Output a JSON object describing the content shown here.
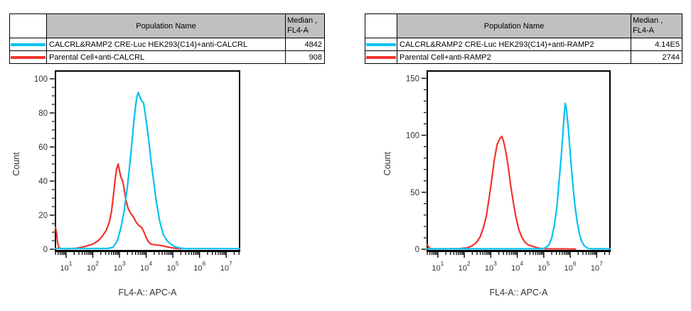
{
  "panels": [
    {
      "table": {
        "population_header": "Population Name",
        "median_header_line1": "Median ,",
        "median_header_line2": "FL4-A",
        "rows": [
          {
            "color": "#00C2F0",
            "name": "CALCRL&RAMP2 CRE-Luc HEK293(C14)+anti-CALCRL",
            "median": "4842"
          },
          {
            "color": "#F2332C",
            "name": "Parental Cell+anti-CALCRL",
            "median": "908"
          }
        ]
      }
    },
    {
      "table": {
        "population_header": "Population Name",
        "median_header_line1": "Median ,",
        "median_header_line2": "FL4-A",
        "rows": [
          {
            "color": "#00C2F0",
            "name": "CALCRL&RAMP2 CRE-Luc HEK293(C14)+anti-RAMP2",
            "median": "4.14E5"
          },
          {
            "color": "#F2332C",
            "name": "Parental Cell+anti-RAMP2",
            "median": "2744"
          }
        ]
      }
    }
  ],
  "chart_data": [
    {
      "type": "line",
      "subtype": "flow-cytometry-histogram-overlay",
      "title": "",
      "xlabel": "FL4-A:: APC-A",
      "ylabel": "Count",
      "x_scale": "log10",
      "x_log_range": [
        0.6,
        7.5
      ],
      "x_major_tick_exponents": [
        1,
        2,
        3,
        4,
        5,
        6,
        7
      ],
      "ylim": [
        0,
        100
      ],
      "y_major_ticks": [
        0,
        20,
        40,
        60,
        80,
        100
      ],
      "y_minor_step": 5,
      "grid": false,
      "legend_position": "table-above",
      "series": [
        {
          "name": "CALCRL&RAMP2 CRE-Luc HEK293(C14)+anti-CALCRL",
          "color": "#00C2F0",
          "median_fl4a": "4842",
          "peak_count": 92,
          "points_logx_count": [
            [
              0.6,
              0.4
            ],
            [
              2.55,
              0.4
            ],
            [
              2.75,
              1
            ],
            [
              2.92,
              5
            ],
            [
              3.06,
              13
            ],
            [
              3.18,
              23
            ],
            [
              3.3,
              37
            ],
            [
              3.42,
              55
            ],
            [
              3.52,
              72
            ],
            [
              3.6,
              84
            ],
            [
              3.66,
              90
            ],
            [
              3.71,
              92
            ],
            [
              3.77,
              89
            ],
            [
              3.83,
              87
            ],
            [
              3.9,
              86
            ],
            [
              3.96,
              80
            ],
            [
              4.03,
              72
            ],
            [
              4.11,
              62
            ],
            [
              4.18,
              52
            ],
            [
              4.28,
              40
            ],
            [
              4.38,
              28
            ],
            [
              4.5,
              17
            ],
            [
              4.63,
              9
            ],
            [
              4.78,
              5
            ],
            [
              4.93,
              3
            ],
            [
              5.08,
              1.5
            ],
            [
              5.23,
              0.8
            ],
            [
              5.42,
              0.4
            ],
            [
              7.5,
              0.35
            ]
          ]
        },
        {
          "name": "Parental Cell+anti-CALCRL",
          "color": "#F2332C",
          "median_fl4a": "908",
          "peak_count": 50,
          "points_logx_count": [
            [
              0.6,
              13
            ],
            [
              0.64,
              10
            ],
            [
              0.68,
              4
            ],
            [
              0.73,
              1
            ],
            [
              0.8,
              0.4
            ],
            [
              1.1,
              0.3
            ],
            [
              1.4,
              0.6
            ],
            [
              1.7,
              1.6
            ],
            [
              2.0,
              3
            ],
            [
              2.2,
              5
            ],
            [
              2.35,
              7.5
            ],
            [
              2.5,
              11
            ],
            [
              2.62,
              16
            ],
            [
              2.7,
              22
            ],
            [
              2.76,
              30
            ],
            [
              2.83,
              40
            ],
            [
              2.89,
              47
            ],
            [
              2.95,
              50
            ],
            [
              3.0,
              46
            ],
            [
              3.06,
              42
            ],
            [
              3.12,
              40
            ],
            [
              3.18,
              35
            ],
            [
              3.24,
              29
            ],
            [
              3.32,
              24
            ],
            [
              3.42,
              21
            ],
            [
              3.52,
              19
            ],
            [
              3.62,
              16
            ],
            [
              3.72,
              14
            ],
            [
              3.82,
              13
            ],
            [
              3.92,
              10
            ],
            [
              4.0,
              7
            ],
            [
              4.08,
              4.5
            ],
            [
              4.18,
              3
            ],
            [
              4.35,
              2.6
            ],
            [
              4.55,
              2.2
            ],
            [
              4.72,
              1.6
            ],
            [
              4.9,
              1
            ],
            [
              5.1,
              0.5
            ],
            [
              5.3,
              0.2
            ]
          ]
        }
      ]
    },
    {
      "type": "line",
      "subtype": "flow-cytometry-histogram-overlay",
      "title": "",
      "xlabel": "FL4-A:: APC-A",
      "ylabel": "Count",
      "x_scale": "log10",
      "x_log_range": [
        0.6,
        7.5
      ],
      "x_major_tick_exponents": [
        1,
        2,
        3,
        4,
        5,
        6,
        7
      ],
      "ylim": [
        0,
        150
      ],
      "y_major_ticks": [
        0,
        50,
        100,
        150
      ],
      "y_minor_step": 10,
      "grid": false,
      "legend_position": "table-above",
      "series": [
        {
          "name": "CALCRL&RAMP2 CRE-Luc HEK293(C14)+anti-RAMP2",
          "color": "#00C2F0",
          "median_fl4a": "4.14E5",
          "peak_count": 128,
          "points_logx_count": [
            [
              0.6,
              0.4
            ],
            [
              4.95,
              0.4
            ],
            [
              5.08,
              1.5
            ],
            [
              5.2,
              4
            ],
            [
              5.3,
              10
            ],
            [
              5.4,
              21
            ],
            [
              5.5,
              38
            ],
            [
              5.58,
              60
            ],
            [
              5.66,
              82
            ],
            [
              5.72,
              100
            ],
            [
              5.77,
              118
            ],
            [
              5.81,
              128
            ],
            [
              5.86,
              122
            ],
            [
              5.92,
              108
            ],
            [
              5.98,
              90
            ],
            [
              6.05,
              70
            ],
            [
              6.12,
              51
            ],
            [
              6.19,
              36
            ],
            [
              6.27,
              23
            ],
            [
              6.35,
              13
            ],
            [
              6.44,
              6.5
            ],
            [
              6.54,
              2.8
            ],
            [
              6.65,
              1
            ],
            [
              6.78,
              0.4
            ],
            [
              7.5,
              0.35
            ]
          ]
        },
        {
          "name": "Parental Cell+anti-RAMP2",
          "color": "#F2332C",
          "median_fl4a": "2744",
          "peak_count": 99,
          "points_logx_count": [
            [
              0.6,
              4
            ],
            [
              0.64,
              2.5
            ],
            [
              0.69,
              1
            ],
            [
              0.76,
              0.4
            ],
            [
              1.2,
              0.3
            ],
            [
              1.8,
              0.5
            ],
            [
              2.1,
              1.2
            ],
            [
              2.3,
              3
            ],
            [
              2.46,
              6
            ],
            [
              2.6,
              11
            ],
            [
              2.72,
              19
            ],
            [
              2.83,
              29
            ],
            [
              2.93,
              44
            ],
            [
              3.03,
              60
            ],
            [
              3.13,
              78
            ],
            [
              3.24,
              92
            ],
            [
              3.34,
              97
            ],
            [
              3.42,
              99
            ],
            [
              3.5,
              93
            ],
            [
              3.58,
              84
            ],
            [
              3.66,
              72
            ],
            [
              3.75,
              56
            ],
            [
              3.85,
              41
            ],
            [
              3.95,
              28
            ],
            [
              4.05,
              18
            ],
            [
              4.16,
              11
            ],
            [
              4.28,
              6.5
            ],
            [
              4.4,
              4
            ],
            [
              4.52,
              3
            ],
            [
              4.62,
              2.2
            ],
            [
              4.76,
              1.2
            ],
            [
              4.9,
              0.6
            ],
            [
              5.1,
              0.35
            ],
            [
              5.6,
              0.3
            ],
            [
              6.2,
              0.2
            ]
          ]
        }
      ]
    }
  ]
}
